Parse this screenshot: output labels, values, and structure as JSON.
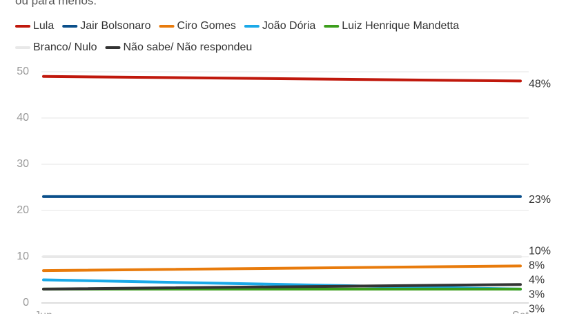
{
  "chart_data": {
    "type": "line",
    "subtitle": "ou para menos.",
    "categories": [
      "Jun",
      "Set"
    ],
    "series": [
      {
        "name": "Lula",
        "color": "#c0180c",
        "values": [
          49,
          48
        ],
        "value_labels": [
          null,
          "48%"
        ]
      },
      {
        "name": "Jair Bolsonaro",
        "color": "#0a4f8a",
        "values": [
          23,
          23
        ],
        "value_labels": [
          null,
          "23%"
        ]
      },
      {
        "name": "Ciro Gomes",
        "color": "#e87b0c",
        "values": [
          7,
          8
        ],
        "value_labels": [
          null,
          "8%"
        ]
      },
      {
        "name": "João Dória",
        "color": "#1aa9e8",
        "values": [
          5,
          3
        ],
        "value_labels": [
          null,
          "3%"
        ]
      },
      {
        "name": "Luiz Henrique Mandetta",
        "color": "#3c9e1c",
        "values": [
          3,
          3
        ],
        "value_labels": [
          null,
          "3%"
        ]
      },
      {
        "name": "Branco/ Nulo",
        "color": "#e8e8e8",
        "values": [
          10,
          10
        ],
        "value_labels": [
          null,
          "10%"
        ]
      },
      {
        "name": "Não sabe/ Não respondeu",
        "color": "#333333",
        "values": [
          3,
          4
        ],
        "value_labels": [
          null,
          "4%"
        ]
      }
    ],
    "ylim": [
      0,
      50
    ],
    "yticks": [
      0,
      10,
      20,
      30,
      40,
      50
    ],
    "grid": true
  }
}
